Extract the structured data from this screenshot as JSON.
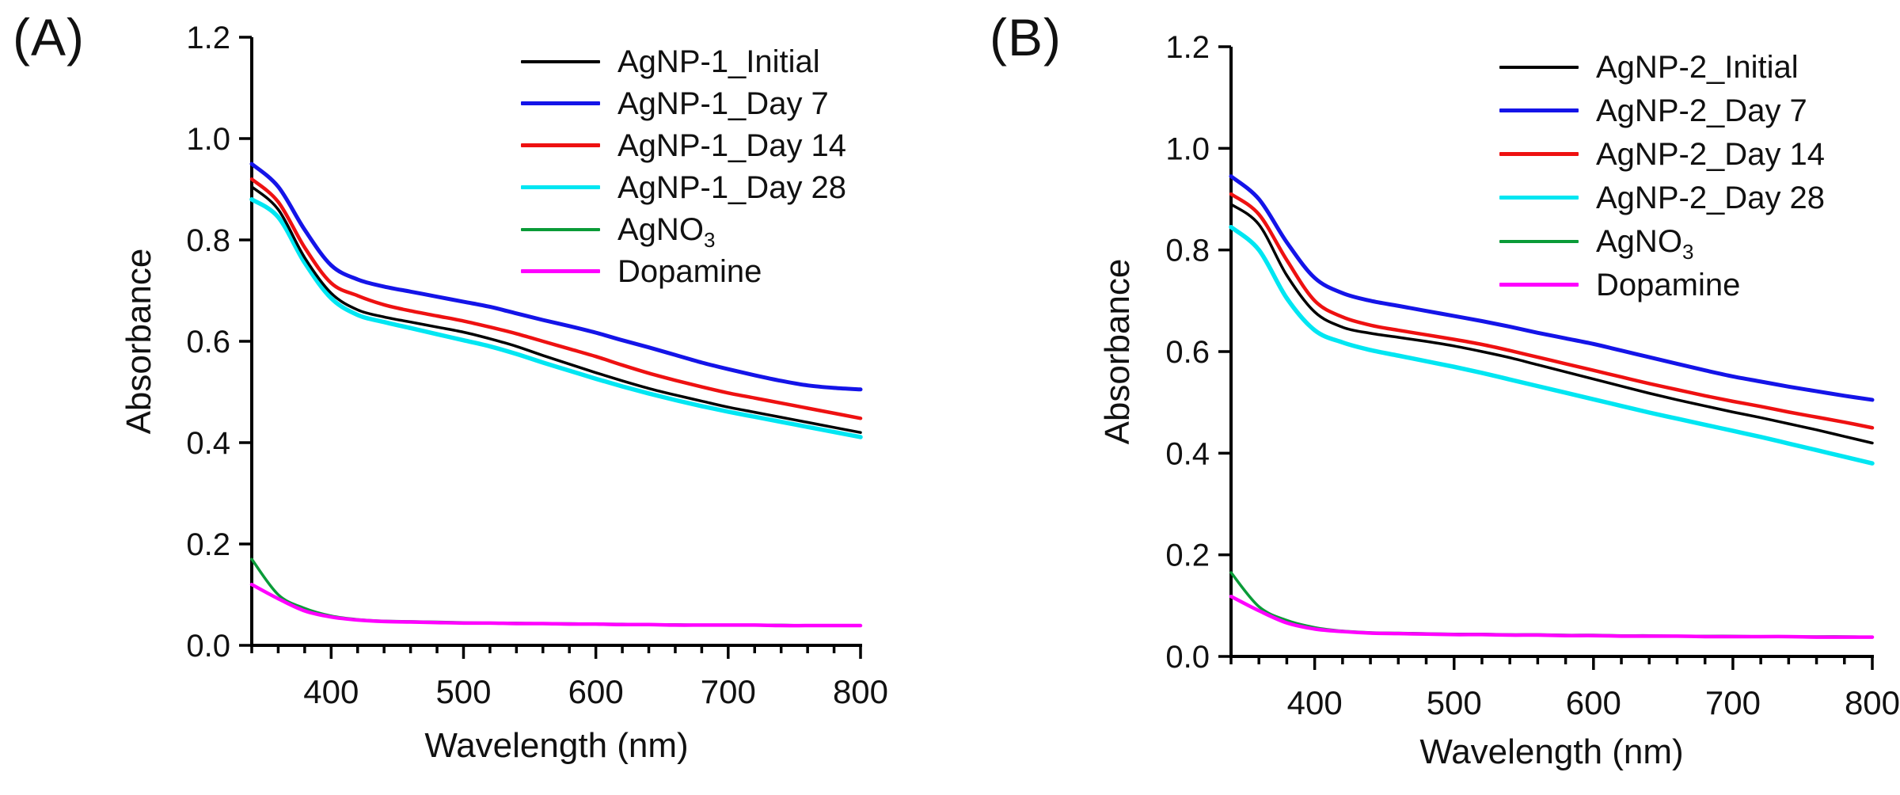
{
  "chart_data": [
    {
      "type": "line",
      "panel_label": "(A)",
      "xlabel": "Wavelength (nm)",
      "ylabel": "Absorbance",
      "xlim": [
        340,
        800
      ],
      "ylim": [
        0.0,
        1.2
      ],
      "x_major_ticks": [
        400,
        500,
        600,
        700,
        800
      ],
      "x_minor_tick_step": 20,
      "y_ticks": [
        0.0,
        0.2,
        0.4,
        0.6,
        0.8,
        1.0,
        1.2
      ],
      "grid": false,
      "legend_position": "upper-right-inside",
      "x": [
        340,
        360,
        380,
        400,
        420,
        440,
        460,
        480,
        500,
        520,
        540,
        560,
        580,
        600,
        620,
        640,
        660,
        680,
        700,
        720,
        740,
        760,
        780,
        800
      ],
      "series": [
        {
          "name": "AgNP-1_Initial",
          "name_main": "AgNP-1_Initial",
          "name_sub": "",
          "color": "#000000",
          "lw": 3.5,
          "values": [
            0.905,
            0.86,
            0.765,
            0.695,
            0.662,
            0.648,
            0.638,
            0.628,
            0.618,
            0.605,
            0.59,
            0.572,
            0.555,
            0.538,
            0.522,
            0.507,
            0.494,
            0.482,
            0.47,
            0.46,
            0.45,
            0.44,
            0.43,
            0.42
          ]
        },
        {
          "name": "AgNP-1_Day 7",
          "name_main": "AgNP-1_Day 7",
          "name_sub": "",
          "color": "#1414e8",
          "lw": 5,
          "values": [
            0.95,
            0.905,
            0.82,
            0.75,
            0.722,
            0.708,
            0.698,
            0.688,
            0.678,
            0.668,
            0.655,
            0.642,
            0.63,
            0.617,
            0.602,
            0.588,
            0.573,
            0.558,
            0.545,
            0.533,
            0.522,
            0.513,
            0.508,
            0.505
          ]
        },
        {
          "name": "AgNP-1_Day 14",
          "name_main": "AgNP-1_Day 14",
          "name_sub": "",
          "color": "#ee1111",
          "lw": 4.5,
          "values": [
            0.92,
            0.875,
            0.785,
            0.715,
            0.69,
            0.672,
            0.66,
            0.65,
            0.64,
            0.628,
            0.615,
            0.6,
            0.585,
            0.57,
            0.553,
            0.537,
            0.523,
            0.51,
            0.498,
            0.488,
            0.478,
            0.468,
            0.458,
            0.448
          ]
        },
        {
          "name": "AgNP-1_Day 28",
          "name_main": "AgNP-1_Day 28",
          "name_sub": "",
          "color": "#00e6f2",
          "lw": 5.5,
          "values": [
            0.88,
            0.845,
            0.755,
            0.685,
            0.652,
            0.638,
            0.626,
            0.614,
            0.602,
            0.59,
            0.575,
            0.558,
            0.542,
            0.526,
            0.511,
            0.497,
            0.484,
            0.472,
            0.461,
            0.451,
            0.441,
            0.431,
            0.421,
            0.411
          ]
        },
        {
          "name": "AgNO3",
          "name_main": "AgNO",
          "name_sub": "3",
          "color": "#0a9b38",
          "lw": 3.5,
          "values": [
            0.17,
            0.1,
            0.073,
            0.058,
            0.051,
            0.048,
            0.047,
            0.046,
            0.045,
            0.044,
            0.044,
            0.043,
            0.043,
            0.042,
            0.042,
            0.041,
            0.041,
            0.04,
            0.04,
            0.04,
            0.04,
            0.039,
            0.039,
            0.039
          ]
        },
        {
          "name": "Dopamine",
          "name_main": "Dopamine",
          "name_sub": "",
          "color": "#ff00ff",
          "lw": 4.5,
          "values": [
            0.12,
            0.092,
            0.068,
            0.056,
            0.05,
            0.047,
            0.046,
            0.045,
            0.044,
            0.044,
            0.043,
            0.043,
            0.042,
            0.042,
            0.041,
            0.041,
            0.04,
            0.04,
            0.04,
            0.04,
            0.039,
            0.039,
            0.039,
            0.039
          ]
        }
      ]
    },
    {
      "type": "line",
      "panel_label": "(B)",
      "xlabel": "Wavelength (nm)",
      "ylabel": "Absorbance",
      "xlim": [
        340,
        800
      ],
      "ylim": [
        0.0,
        1.2
      ],
      "x_major_ticks": [
        400,
        500,
        600,
        700,
        800
      ],
      "x_minor_tick_step": 20,
      "y_ticks": [
        0.0,
        0.2,
        0.4,
        0.6,
        0.8,
        1.0,
        1.2
      ],
      "grid": false,
      "legend_position": "upper-right-inside",
      "x": [
        340,
        360,
        380,
        400,
        420,
        440,
        460,
        480,
        500,
        520,
        540,
        560,
        580,
        600,
        620,
        640,
        660,
        680,
        700,
        720,
        740,
        760,
        780,
        800
      ],
      "series": [
        {
          "name": "AgNP-2_Initial",
          "name_main": "AgNP-2_Initial",
          "name_sub": "",
          "color": "#000000",
          "lw": 3.5,
          "values": [
            0.89,
            0.85,
            0.75,
            0.678,
            0.648,
            0.636,
            0.628,
            0.62,
            0.611,
            0.6,
            0.588,
            0.574,
            0.56,
            0.546,
            0.532,
            0.518,
            0.505,
            0.493,
            0.481,
            0.47,
            0.458,
            0.446,
            0.433,
            0.42
          ]
        },
        {
          "name": "AgNP-2_Day 7",
          "name_main": "AgNP-2_Day 7",
          "name_sub": "",
          "color": "#1414e8",
          "lw": 5,
          "values": [
            0.945,
            0.9,
            0.815,
            0.745,
            0.715,
            0.7,
            0.69,
            0.68,
            0.67,
            0.66,
            0.649,
            0.637,
            0.626,
            0.615,
            0.602,
            0.589,
            0.576,
            0.563,
            0.551,
            0.541,
            0.531,
            0.522,
            0.513,
            0.505
          ]
        },
        {
          "name": "AgNP-2_Day 14",
          "name_main": "AgNP-2_Day 14",
          "name_sub": "",
          "color": "#ee1111",
          "lw": 4.5,
          "values": [
            0.91,
            0.87,
            0.78,
            0.7,
            0.668,
            0.652,
            0.642,
            0.633,
            0.624,
            0.614,
            0.602,
            0.589,
            0.576,
            0.563,
            0.55,
            0.537,
            0.525,
            0.513,
            0.502,
            0.492,
            0.481,
            0.471,
            0.461,
            0.45
          ]
        },
        {
          "name": "AgNP-2_Day 28",
          "name_main": "AgNP-2_Day 28",
          "name_sub": "",
          "color": "#00e6f2",
          "lw": 5.5,
          "values": [
            0.845,
            0.8,
            0.705,
            0.642,
            0.618,
            0.603,
            0.592,
            0.581,
            0.57,
            0.558,
            0.545,
            0.532,
            0.519,
            0.506,
            0.493,
            0.48,
            0.468,
            0.456,
            0.444,
            0.432,
            0.419,
            0.406,
            0.393,
            0.38
          ]
        },
        {
          "name": "AgNO3",
          "name_main": "AgNO",
          "name_sub": "3",
          "color": "#0a9b38",
          "lw": 3.5,
          "values": [
            0.165,
            0.098,
            0.071,
            0.057,
            0.05,
            0.047,
            0.046,
            0.045,
            0.044,
            0.044,
            0.043,
            0.043,
            0.042,
            0.042,
            0.041,
            0.041,
            0.04,
            0.04,
            0.04,
            0.039,
            0.039,
            0.039,
            0.039,
            0.038
          ]
        },
        {
          "name": "Dopamine",
          "name_main": "Dopamine",
          "name_sub": "",
          "color": "#ff00ff",
          "lw": 4.5,
          "values": [
            0.118,
            0.09,
            0.066,
            0.054,
            0.049,
            0.046,
            0.045,
            0.044,
            0.043,
            0.043,
            0.042,
            0.042,
            0.041,
            0.041,
            0.04,
            0.04,
            0.04,
            0.039,
            0.039,
            0.039,
            0.039,
            0.038,
            0.038,
            0.038
          ]
        }
      ]
    }
  ]
}
